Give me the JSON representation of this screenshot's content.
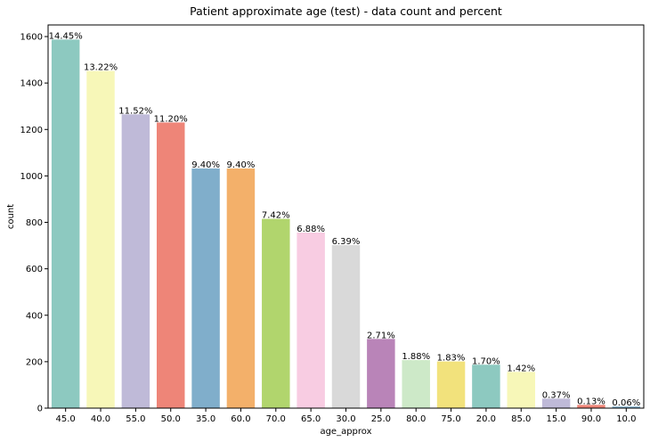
{
  "chart_data": {
    "type": "bar",
    "title": "Patient approximate age (test) - data count and percent",
    "xlabel": "age_approx",
    "ylabel": "count",
    "ylim": [
      0,
      1650
    ],
    "yticks": [
      0,
      200,
      400,
      600,
      800,
      1000,
      1200,
      1400,
      1600
    ],
    "grid": false,
    "categories": [
      "45.0",
      "40.0",
      "55.0",
      "50.0",
      "35.0",
      "60.0",
      "70.0",
      "65.0",
      "30.0",
      "25.0",
      "80.0",
      "75.0",
      "20.0",
      "85.0",
      "15.0",
      "90.0",
      "10.0"
    ],
    "values": [
      1587,
      1452,
      1265,
      1230,
      1032,
      1032,
      815,
      756,
      702,
      298,
      207,
      201,
      187,
      156,
      41,
      14,
      7
    ],
    "percent_labels": [
      "14.45%",
      "13.22%",
      "11.52%",
      "11.20%",
      "9.40%",
      "9.40%",
      "7.42%",
      "6.88%",
      "6.39%",
      "2.71%",
      "1.88%",
      "1.83%",
      "1.70%",
      "1.42%",
      "0.37%",
      "0.13%",
      "0.06%"
    ],
    "colors": [
      "#8dc9c0",
      "#f7f7b8",
      "#bfbad8",
      "#ee8578",
      "#80aecb",
      "#f3b06a",
      "#b1d56d",
      "#f8cce2",
      "#d9d9d9",
      "#b984b8",
      "#cde9c8",
      "#f2e27c",
      "#8dc9c0",
      "#f7f7b8",
      "#bfbad8",
      "#ee8578",
      "#80aecb"
    ]
  }
}
